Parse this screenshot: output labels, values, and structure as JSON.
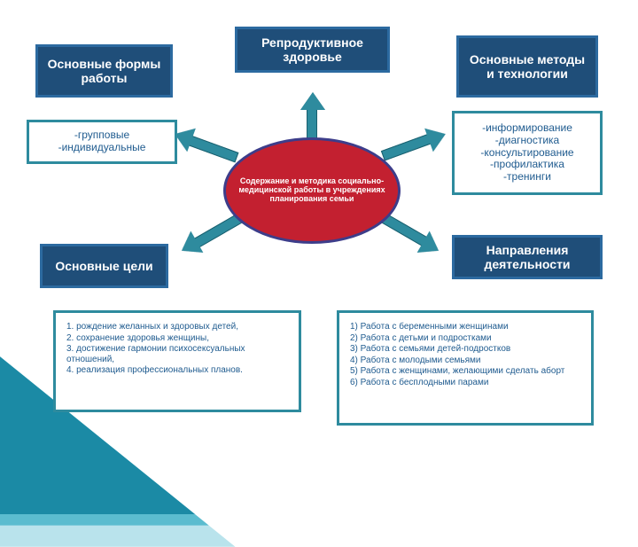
{
  "colors": {
    "title_bg": "#1f4e79",
    "title_border": "#2c6aa0",
    "detail_bg": "#ffffff",
    "detail_border": "#2e8b9e",
    "detail_text": "#1f5b8f",
    "center_bg": "#c32030",
    "center_border": "#3d3d8a",
    "arrow": "#2e8b9e",
    "tri1": "#1b8aa5",
    "tri2": "#5bbccf",
    "tri3": "#b9e3ec"
  },
  "center": {
    "text": "Содержание и методика социально-медицинской работы в учреждениях планирования семьи",
    "fontsize": 9
  },
  "top": {
    "title": "Репродуктивное здоровье"
  },
  "topleft": {
    "title": "Основные формы работы",
    "detail": "-групповые\n-индивидуальные"
  },
  "topright": {
    "title": "Основные методы и технологии",
    "detail": "-информирование\n-диагностика\n-консультирование\n-профилактика\n-тренинги"
  },
  "midright": {
    "title": "Направления деятельности"
  },
  "midleft": {
    "title": "Основные цели"
  },
  "bottomleft": {
    "items": [
      "        1. рождение желанных и здоровых детей,",
      "        2. сохранение здоровья женщины,",
      "        3. достижение гармонии психосексуальных отношений,",
      "        4. реализация профессиональных планов."
    ]
  },
  "bottomright": {
    "items": [
      "1) Работа с беременными женщинами",
      "2) Работа с детьми и подростками",
      "3) Работа с семьями детей-подростков",
      "4) Работа с молодыми семьями",
      "5) Работа с женщинами, желающими сделать аборт",
      "6) Работа с бесплодными парами"
    ]
  },
  "layout": {
    "title_fontsize": 14,
    "detail_fontsize": 12,
    "list_fontsize": 10
  }
}
